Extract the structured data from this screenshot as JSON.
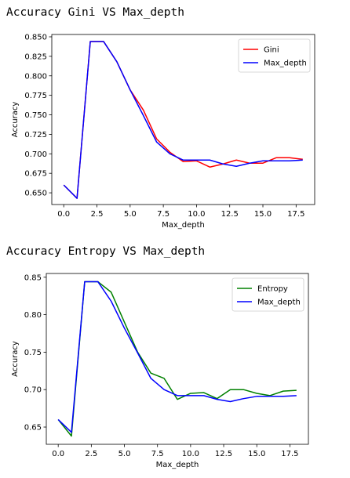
{
  "headings": {
    "first": "Accuracy Gini VS Max_depth",
    "second": "Accuracy Entropy VS Max_depth"
  },
  "chart_data": [
    {
      "type": "line",
      "title": "",
      "xlabel": "Max_depth",
      "ylabel": "Accuracy",
      "xlim": [
        -0.9,
        18.9
      ],
      "ylim": [
        0.635,
        0.853
      ],
      "xticks": [
        0.0,
        2.5,
        5.0,
        7.5,
        10.0,
        12.5,
        15.0,
        17.5
      ],
      "xtick_labels": [
        "0.0",
        "2.5",
        "5.0",
        "7.5",
        "10.0",
        "12.5",
        "15.0",
        "17.5"
      ],
      "yticks": [
        0.65,
        0.675,
        0.7,
        0.725,
        0.75,
        0.775,
        0.8,
        0.825,
        0.85
      ],
      "ytick_labels": [
        "0.650",
        "0.675",
        "0.700",
        "0.725",
        "0.750",
        "0.775",
        "0.800",
        "0.825",
        "0.850"
      ],
      "grid": false,
      "legend": "top-right",
      "x": [
        0,
        1,
        2,
        3,
        4,
        5,
        6,
        7,
        8,
        9,
        10,
        11,
        12,
        13,
        14,
        15,
        16,
        17,
        18
      ],
      "series": [
        {
          "name": "Gini",
          "color": "#ff0000",
          "values": [
            0.66,
            0.643,
            0.844,
            0.844,
            0.818,
            0.782,
            0.756,
            0.719,
            0.702,
            0.69,
            0.691,
            0.683,
            0.687,
            0.692,
            0.688,
            0.688,
            0.695,
            0.695,
            0.693
          ]
        },
        {
          "name": "Max_depth",
          "color": "#0000ff",
          "values": [
            0.66,
            0.643,
            0.844,
            0.844,
            0.818,
            0.782,
            0.749,
            0.715,
            0.7,
            0.692,
            0.692,
            0.692,
            0.687,
            0.684,
            0.688,
            0.691,
            0.691,
            0.691,
            0.692
          ]
        }
      ]
    },
    {
      "type": "line",
      "title": "",
      "xlabel": "Max_depth",
      "ylabel": "Accuracy",
      "xlim": [
        -0.9,
        18.9
      ],
      "ylim": [
        0.627,
        0.855
      ],
      "xticks": [
        0.0,
        2.5,
        5.0,
        7.5,
        10.0,
        12.5,
        15.0,
        17.5
      ],
      "xtick_labels": [
        "0.0",
        "2.5",
        "5.0",
        "7.5",
        "10.0",
        "12.5",
        "15.0",
        "17.5"
      ],
      "yticks": [
        0.65,
        0.7,
        0.75,
        0.8,
        0.85
      ],
      "ytick_labels": [
        "0.65",
        "0.70",
        "0.75",
        "0.80",
        "0.85"
      ],
      "grid": false,
      "legend": "top-right",
      "x": [
        0,
        1,
        2,
        3,
        4,
        5,
        6,
        7,
        8,
        9,
        10,
        11,
        12,
        13,
        14,
        15,
        16,
        17,
        18
      ],
      "series": [
        {
          "name": "Entropy",
          "color": "#008000",
          "values": [
            0.66,
            0.638,
            0.844,
            0.844,
            0.83,
            0.79,
            0.75,
            0.722,
            0.715,
            0.687,
            0.695,
            0.696,
            0.688,
            0.7,
            0.7,
            0.695,
            0.692,
            0.698,
            0.699
          ]
        },
        {
          "name": "Max_depth",
          "color": "#0000ff",
          "values": [
            0.66,
            0.643,
            0.844,
            0.844,
            0.818,
            0.782,
            0.749,
            0.715,
            0.7,
            0.692,
            0.692,
            0.692,
            0.687,
            0.684,
            0.688,
            0.691,
            0.691,
            0.691,
            0.692
          ]
        }
      ]
    }
  ]
}
